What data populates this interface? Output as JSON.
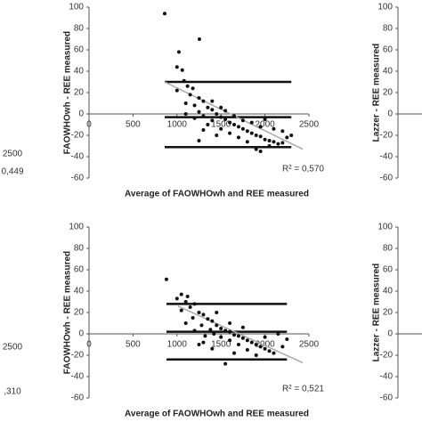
{
  "chart_data": [
    {
      "type": "fragment",
      "xticks": [
        2500
      ],
      "annotation": "0,449"
    },
    {
      "type": "scatter",
      "xlabel": "Average of FAOWHOwh and REE measured",
      "ylabel": "FAOWHOwh - REE measured",
      "xlim": [
        0,
        2500
      ],
      "xticks": [
        0,
        500,
        1000,
        1500,
        2000,
        2500
      ],
      "ylim": [
        -60,
        100
      ],
      "yticks": [
        100,
        80,
        60,
        40,
        20,
        0,
        -20,
        -40,
        -60
      ],
      "annotation": "R² = 0,570",
      "color": "#111111",
      "x": [
        860,
        1022,
        1255,
        1000,
        1060,
        1080,
        1120,
        1180,
        1000,
        1150,
        1250,
        1300,
        1100,
        1200,
        1350,
        1400,
        1250,
        1450,
        1300,
        1500,
        1550,
        1400,
        1600,
        1650,
        1350,
        1700,
        1750,
        1500,
        1800,
        1850,
        1600,
        1900,
        1950,
        1700,
        2000,
        2050,
        1800,
        2100,
        2150,
        2200,
        2250,
        2300,
        1900,
        1950,
        2050,
        1450,
        1300,
        1550,
        1650,
        1750,
        1850,
        1950,
        2100,
        2200,
        1200,
        1100,
        1400,
        1500,
        2000,
        1250
      ],
      "values": [
        94,
        58,
        70,
        44,
        41,
        31,
        26,
        24,
        22,
        18,
        15,
        12,
        10,
        8,
        6,
        4,
        2,
        0,
        -2,
        -3,
        -5,
        -6,
        -8,
        -10,
        -10,
        -12,
        -14,
        -14,
        -16,
        -18,
        -18,
        -20,
        -21,
        -22,
        -24,
        -25,
        -26,
        -26,
        -28,
        -27,
        -22,
        -20,
        -33,
        -35,
        -30,
        -20,
        -15,
        3,
        -2,
        -6,
        -8,
        -12,
        -14,
        -16,
        -4,
        0,
        12,
        6,
        -5,
        -25
      ],
      "hlines": [
        30,
        -3,
        -31
      ],
      "trendline": {
        "x": [
          860,
          2430
        ],
        "values": [
          30,
          -33
        ]
      }
    },
    {
      "type": "fragment",
      "ylabel": "Lazzer - REE measured",
      "ylim": [
        -60,
        100
      ],
      "yticks": [
        100,
        80,
        60,
        40,
        20,
        0,
        -20,
        -40,
        -60
      ]
    },
    {
      "type": "fragment",
      "xticks": [
        2500
      ],
      "annotation": ",310"
    },
    {
      "type": "scatter",
      "xlabel": "Average of FAOWHOwh and REE measured",
      "ylabel": "FAOWHOwh - REE measured",
      "xlim": [
        0,
        2500
      ],
      "xticks": [
        0,
        500,
        1000,
        1500,
        2000,
        2500
      ],
      "ylim": [
        -60,
        100
      ],
      "yticks": [
        100,
        80,
        60,
        40,
        20,
        0,
        -20,
        -40,
        -60
      ],
      "annotation": "R² = 0,521",
      "color": "#111111",
      "x": [
        880,
        1050,
        1120,
        1000,
        1100,
        1200,
        1150,
        1050,
        1250,
        1300,
        1180,
        1350,
        1400,
        1100,
        1280,
        1450,
        1500,
        1380,
        1550,
        1600,
        1420,
        1650,
        1700,
        1500,
        1750,
        1800,
        1600,
        1850,
        1900,
        1700,
        1950,
        2000,
        1800,
        2050,
        2100,
        1550,
        1900,
        2200,
        2250,
        1300,
        1400,
        1650,
        1200,
        1320,
        1750,
        2000,
        2150,
        1450,
        1600,
        1250
      ],
      "values": [
        51,
        37,
        35,
        33,
        30,
        28,
        25,
        22,
        20,
        18,
        15,
        14,
        12,
        10,
        8,
        8,
        5,
        4,
        3,
        2,
        0,
        -1,
        -2,
        -3,
        -4,
        -6,
        -6,
        -8,
        -10,
        -10,
        -12,
        -14,
        -15,
        -16,
        -18,
        -28,
        -20,
        -12,
        -5,
        -8,
        -14,
        -18,
        3,
        -2,
        6,
        -3,
        0,
        20,
        10,
        -10
      ],
      "hlines": [
        28,
        2,
        -24
      ],
      "trendline": {
        "x": [
          1012,
          2430
        ],
        "values": [
          26,
          -27
        ]
      }
    },
    {
      "type": "fragment",
      "ylabel": "Lazzer - REE measured",
      "ylim": [
        -60,
        100
      ],
      "yticks": [
        100,
        80,
        60,
        40,
        20,
        0,
        -20,
        -40,
        -60
      ]
    }
  ]
}
